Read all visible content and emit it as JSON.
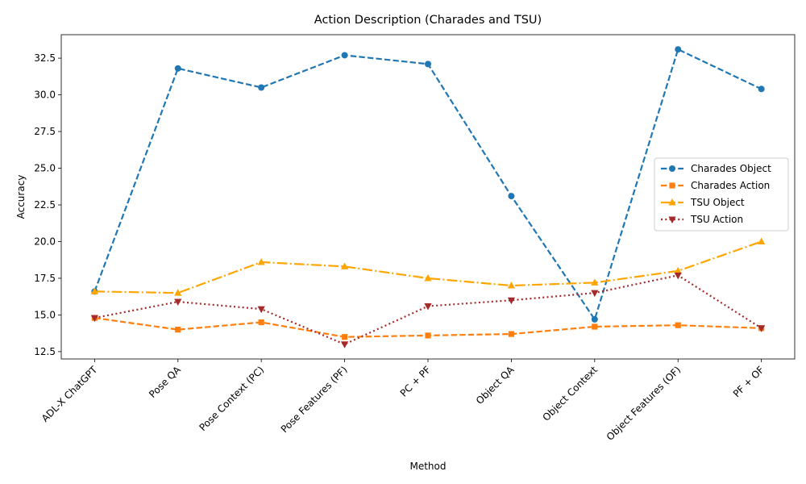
{
  "chart_data": {
    "type": "line",
    "title": "Action Description (Charades and TSU)",
    "xlabel": "Method",
    "ylabel": "Accuracy",
    "categories": [
      "ADL-X ChatGPT",
      "Pose QA",
      "Pose Context (PC)",
      "Pose Features (PF)",
      "PC + PF",
      "Object QA",
      "Object Context",
      "Object Features (OF)",
      "PF + OF"
    ],
    "ylim": [
      12.0,
      34.1
    ],
    "yticks": [
      12.5,
      15.0,
      17.5,
      20.0,
      22.5,
      25.0,
      27.5,
      30.0,
      32.5
    ],
    "ytick_labels": [
      "12.5",
      "15.0",
      "17.5",
      "20.0",
      "22.5",
      "25.0",
      "27.5",
      "30.0",
      "32.5"
    ],
    "grid": false,
    "legend_position": "center-right",
    "series": [
      {
        "name": "Charades Object",
        "color": "#1f77b4",
        "dash": "dashed",
        "marker": "circle",
        "values": [
          16.6,
          31.8,
          30.5,
          32.7,
          32.1,
          23.1,
          14.7,
          33.1,
          30.4
        ]
      },
      {
        "name": "Charades Action",
        "color": "#ff7f0e",
        "dash": "dashed",
        "marker": "square",
        "values": [
          14.8,
          14.0,
          14.5,
          13.5,
          13.6,
          13.7,
          14.2,
          14.3,
          14.1
        ]
      },
      {
        "name": "TSU Object",
        "color": "#ffa500",
        "dash": "dashdot",
        "marker": "triangle-up",
        "values": [
          16.6,
          16.5,
          18.6,
          18.3,
          17.5,
          17.0,
          17.2,
          18.0,
          20.0
        ]
      },
      {
        "name": "TSU Action",
        "color": "#a52a2a",
        "dash": "dotted",
        "marker": "triangle-down",
        "values": [
          14.8,
          15.9,
          15.4,
          13.0,
          15.6,
          16.0,
          16.5,
          17.7,
          14.1
        ]
      }
    ]
  }
}
